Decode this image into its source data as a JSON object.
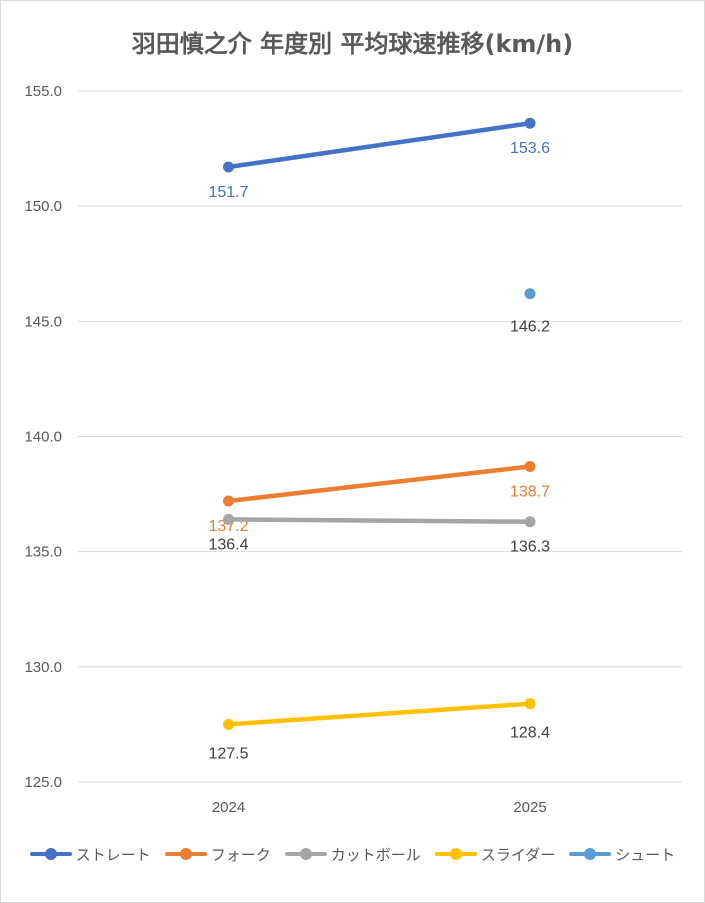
{
  "chart_data": {
    "type": "line",
    "title": "羽田慎之介 年度別 平均球速推移(km/h)",
    "xlabel": "",
    "ylabel": "",
    "categories": [
      "2024",
      "2025"
    ],
    "ylim": [
      125.0,
      155.0
    ],
    "ytick_step": 5.0,
    "yticks": [
      "125.0",
      "130.0",
      "135.0",
      "140.0",
      "145.0",
      "150.0",
      "155.0"
    ],
    "grid": true,
    "legend_position": "bottom",
    "series": [
      {
        "name": "ストレート",
        "color": "#4472C4",
        "label_color": "#4472C4",
        "values": [
          151.7,
          153.6
        ],
        "labels": [
          "151.7",
          "153.6"
        ]
      },
      {
        "name": "フォーク",
        "color": "#ED7D31",
        "label_color": "#ED7D31",
        "values": [
          137.2,
          138.7
        ],
        "labels": [
          "137.2",
          "138.7"
        ]
      },
      {
        "name": "カットボール",
        "color": "#A5A5A5",
        "label_color": "#404040",
        "values": [
          136.4,
          136.3
        ],
        "labels": [
          "136.4",
          "136.3"
        ]
      },
      {
        "name": "スライダー",
        "color": "#FFC000",
        "label_color": "#404040",
        "values": [
          127.5,
          128.4
        ],
        "labels": [
          "127.5",
          "128.4"
        ]
      },
      {
        "name": "シュート",
        "color": "#5B9BD5",
        "label_color": "#404040",
        "values": [
          null,
          146.2
        ],
        "labels": [
          null,
          "146.2"
        ]
      }
    ]
  }
}
